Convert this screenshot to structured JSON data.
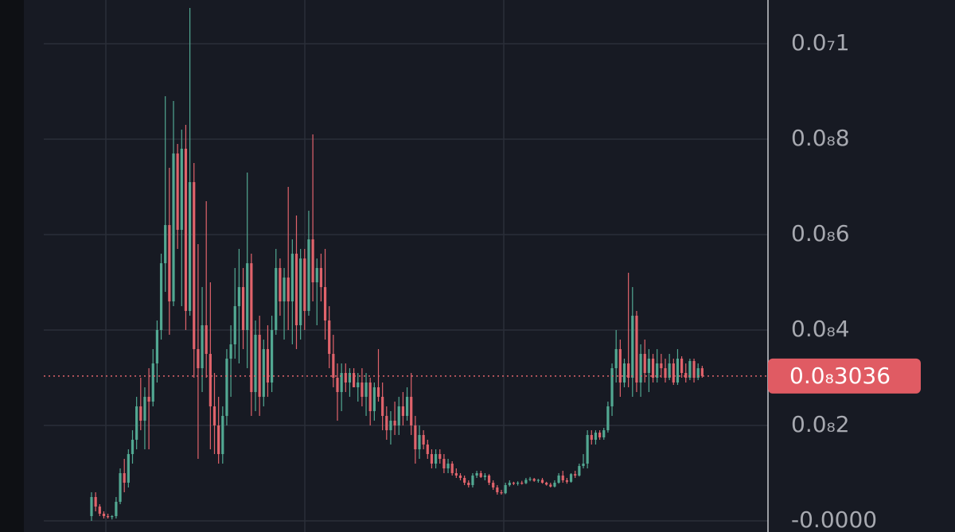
{
  "chart_data": {
    "type": "candlestick",
    "up_color": "#52a892",
    "down_color": "#e0636b",
    "grid": true,
    "ylim": [
      -2.33e-10,
      1.0917e-08
    ],
    "yticks": [
      {
        "value": 0,
        "label": "-0.0000"
      },
      {
        "value": 2e-09,
        "label": "0.0₈2"
      },
      {
        "value": 4e-09,
        "label": "0.0₈4"
      },
      {
        "value": 6e-09,
        "label": "0.0₈6"
      },
      {
        "value": 8e-09,
        "label": "0.0₈8"
      },
      {
        "value": 1e-08,
        "label": "0.0₇1"
      }
    ],
    "last_price": {
      "value": 3.036e-09,
      "label": "0.0₈3036"
    },
    "candles": [
      [
        1e-10,
        6e-10,
        0.0,
        5e-10
      ],
      [
        5e-10,
        6e-10,
        2e-10,
        3e-10
      ],
      [
        3e-10,
        3.5e-10,
        1e-10,
        1.5e-10
      ],
      [
        1.5e-10,
        2e-10,
        5e-11,
        1e-10
      ],
      [
        1e-10,
        1.5e-10,
        5e-11,
        8e-11
      ],
      [
        8e-11,
        1.2e-10,
        3e-11,
        1e-10
      ],
      [
        1e-10,
        5e-10,
        5e-11,
        4e-10
      ],
      [
        4e-10,
        1.1e-09,
        3.5e-10,
        1e-09
      ],
      [
        1e-09,
        1.3e-09,
        6e-10,
        8e-10
      ],
      [
        8e-10,
        1.5e-09,
        7e-10,
        1.4e-09
      ],
      [
        1.4e-09,
        1.9e-09,
        1.2e-09,
        1.7e-09
      ],
      [
        1.7e-09,
        2.6e-09,
        1.5e-09,
        2.4e-09
      ],
      [
        2.4e-09,
        3e-09,
        1.9e-09,
        2.1e-09
      ],
      [
        2.1e-09,
        2.8e-09,
        1.5e-09,
        2.6e-09
      ],
      [
        2.6e-09,
        3.2e-09,
        1.5e-09,
        2.5e-09
      ],
      [
        2.5e-09,
        3.6e-09,
        2.4e-09,
        3.3e-09
      ],
      [
        3.3e-09,
        4.2e-09,
        2.9e-09,
        4e-09
      ],
      [
        4e-09,
        5.6e-09,
        3.8e-09,
        5.4e-09
      ],
      [
        5.4e-09,
        8.9e-09,
        4.8e-09,
        6.2e-09
      ],
      [
        6.2e-09,
        7.4e-09,
        3.9e-09,
        4.6e-09
      ],
      [
        4.6e-09,
        8.8e-09,
        4.5e-09,
        7.7e-09
      ],
      [
        7.7e-09,
        7.9e-09,
        5.7e-09,
        6.1e-09
      ],
      [
        6.1e-09,
        8.2e-09,
        4.5e-09,
        7.8e-09
      ],
      [
        7.8e-09,
        8.3e-09,
        4e-09,
        4.4e-09
      ],
      [
        4.4e-09,
        1.075e-08,
        4.3e-09,
        7.1e-09
      ],
      [
        7.1e-09,
        7.5e-09,
        3e-09,
        3.6e-09
      ],
      [
        3.6e-09,
        5.8e-09,
        1.3e-09,
        3.2e-09
      ],
      [
        3.2e-09,
        4.9e-09,
        2.7e-09,
        4.1e-09
      ],
      [
        4.1e-09,
        6.7e-09,
        3e-09,
        3.5e-09
      ],
      [
        3.5e-09,
        5e-09,
        1.5e-09,
        2.4e-09
      ],
      [
        2.4e-09,
        3.1e-09,
        1.4e-09,
        2e-09
      ],
      [
        2e-09,
        2.6e-09,
        1.2e-09,
        1.4e-09
      ],
      [
        1.4e-09,
        2.4e-09,
        1.2e-09,
        2.2e-09
      ],
      [
        2.2e-09,
        3.6e-09,
        2e-09,
        3.4e-09
      ],
      [
        3.4e-09,
        4.1e-09,
        2.6e-09,
        3.7e-09
      ],
      [
        3.7e-09,
        5.3e-09,
        3.4e-09,
        4.5e-09
      ],
      [
        4.5e-09,
        5.7e-09,
        3.3e-09,
        4.9e-09
      ],
      [
        4.9e-09,
        5.3e-09,
        3.6e-09,
        4e-09
      ],
      [
        4e-09,
        7.3e-09,
        3.2e-09,
        5.4e-09
      ],
      [
        5.4e-09,
        5.6e-09,
        2.2e-09,
        2.7e-09
      ],
      [
        2.7e-09,
        4.2e-09,
        2.3e-09,
        3.9e-09
      ],
      [
        3.9e-09,
        4.3e-09,
        2.2e-09,
        2.6e-09
      ],
      [
        2.6e-09,
        3.8e-09,
        2.4e-09,
        3.6e-09
      ],
      [
        3.6e-09,
        4.1e-09,
        2.6e-09,
        2.9e-09
      ],
      [
        2.9e-09,
        4.3e-09,
        2.7e-09,
        4e-09
      ],
      [
        4e-09,
        5.7e-09,
        3.9e-09,
        5.3e-09
      ],
      [
        5.3e-09,
        5.5e-09,
        4.3e-09,
        4.6e-09
      ],
      [
        4.6e-09,
        5.3e-09,
        3.8e-09,
        5.1e-09
      ],
      [
        5.1e-09,
        7e-09,
        4e-09,
        4.6e-09
      ],
      [
        4.6e-09,
        5.9e-09,
        3.7e-09,
        5.6e-09
      ],
      [
        5.6e-09,
        6.4e-09,
        3.6e-09,
        4.1e-09
      ],
      [
        4.1e-09,
        5.7e-09,
        3.8e-09,
        5.5e-09
      ],
      [
        5.5e-09,
        5.7e-09,
        4e-09,
        4.4e-09
      ],
      [
        4.4e-09,
        6.5e-09,
        4.3e-09,
        5.9e-09
      ],
      [
        5.9e-09,
        8.1e-09,
        4.6e-09,
        5e-09
      ],
      [
        5e-09,
        5.5e-09,
        4.1e-09,
        5.3e-09
      ],
      [
        5.3e-09,
        5.6e-09,
        4.6e-09,
        4.9e-09
      ],
      [
        4.9e-09,
        5.7e-09,
        3.8e-09,
        4.2e-09
      ],
      [
        4.2e-09,
        4.5e-09,
        3.2e-09,
        3.5e-09
      ],
      [
        3.5e-09,
        3.9e-09,
        2.8e-09,
        3e-09
      ],
      [
        3e-09,
        3.3e-09,
        2.1e-09,
        2.7e-09
      ],
      [
        2.7e-09,
        3.3e-09,
        2.3e-09,
        3.1e-09
      ],
      [
        3.1e-09,
        3.3e-09,
        2.7e-09,
        2.9e-09
      ],
      [
        2.9e-09,
        3.2e-09,
        2.6e-09,
        3.1e-09
      ],
      [
        3.1e-09,
        3.2e-09,
        2.8e-09,
        2.8e-09
      ],
      [
        2.8e-09,
        3.1e-09,
        2.5e-09,
        2.9e-09
      ],
      [
        2.9e-09,
        3.2e-09,
        2.4e-09,
        2.6e-09
      ],
      [
        2.6e-09,
        3.1e-09,
        2.2e-09,
        2.9e-09
      ],
      [
        2.9e-09,
        3e-09,
        2e-09,
        2.3e-09
      ],
      [
        2.3e-09,
        2.9e-09,
        2.1e-09,
        2.8e-09
      ],
      [
        2.8e-09,
        3.6e-09,
        2.5e-09,
        2.6e-09
      ],
      [
        2.6e-09,
        2.9e-09,
        1.9e-09,
        2.2e-09
      ],
      [
        2.2e-09,
        2.4e-09,
        1.7e-09,
        1.9e-09
      ],
      [
        1.9e-09,
        2.3e-09,
        1.6e-09,
        2.1e-09
      ],
      [
        2.1e-09,
        2.5e-09,
        1.8e-09,
        2e-09
      ],
      [
        2e-09,
        2.6e-09,
        1.8e-09,
        2.4e-09
      ],
      [
        2.4e-09,
        2.7e-09,
        2e-09,
        2.2e-09
      ],
      [
        2.2e-09,
        2.8e-09,
        2.1e-09,
        2.6e-09
      ],
      [
        2.6e-09,
        3.1e-09,
        1.8e-09,
        2e-09
      ],
      [
        2e-09,
        2.2e-09,
        1.2e-09,
        1.5e-09
      ],
      [
        1.5e-09,
        2e-09,
        1.3e-09,
        1.8e-09
      ],
      [
        1.8e-09,
        1.9e-09,
        1.5e-09,
        1.6e-09
      ],
      [
        1.6e-09,
        1.7e-09,
        1.3e-09,
        1.4e-09
      ],
      [
        1.4e-09,
        1.5e-09,
        1.1e-09,
        1.2e-09
      ],
      [
        1.2e-09,
        1.5e-09,
        1.1e-09,
        1.4e-09
      ],
      [
        1.4e-09,
        1.5e-09,
        1.2e-09,
        1.3e-09
      ],
      [
        1.3e-09,
        1.4e-09,
        1e-09,
        1.1e-09
      ],
      [
        1.1e-09,
        1.3e-09,
        1e-09,
        1.2e-09
      ],
      [
        1.2e-09,
        1.25e-09,
        9.5e-10,
        1e-09
      ],
      [
        1e-09,
        1.1e-09,
        9e-10,
        9.5e-10
      ],
      [
        9.5e-10,
        1e-09,
        8.5e-10,
        9e-10
      ],
      [
        9e-10,
        9.5e-10,
        7.5e-10,
        8e-10
      ],
      [
        8e-10,
        8.5e-10,
        7e-10,
        7.5e-10
      ],
      [
        7.5e-10,
        1e-09,
        7e-10,
        9.5e-10
      ],
      [
        9.5e-10,
        1.05e-09,
        9e-10,
        1e-09
      ],
      [
        1e-09,
        1.05e-09,
        9e-10,
        9.2e-10
      ],
      [
        9.2e-10,
        1e-09,
        8.5e-10,
        9.5e-10
      ],
      [
        9.5e-10,
        9.8e-10,
        7.5e-10,
        8e-10
      ],
      [
        8e-10,
        8.5e-10,
        6.5e-10,
        7e-10
      ],
      [
        7e-10,
        7.5e-10,
        5.5e-10,
        6e-10
      ],
      [
        6e-10,
        6.5e-10,
        5.5e-10,
        5.8e-10
      ],
      [
        5.8e-10,
        8e-10,
        5.6e-10,
        7.5e-10
      ],
      [
        7.5e-10,
        8.5e-10,
        7.2e-10,
        8e-10
      ],
      [
        8e-10,
        8.2e-10,
        7.5e-10,
        7.8e-10
      ],
      [
        7.8e-10,
        8.3e-10,
        7.4e-10,
        8e-10
      ],
      [
        8e-10,
        8.4e-10,
        7.6e-10,
        7.9e-10
      ],
      [
        7.9e-10,
        9e-10,
        7.7e-10,
        8.6e-10
      ],
      [
        8.6e-10,
        9.2e-10,
        8.3e-10,
        8.8e-10
      ],
      [
        8.8e-10,
        9e-10,
        8.2e-10,
        8.4e-10
      ],
      [
        8.4e-10,
        8.8e-10,
        8e-10,
        8.6e-10
      ],
      [
        8.6e-10,
        9e-10,
        7.8e-10,
        8e-10
      ],
      [
        8e-10,
        8.2e-10,
        7.4e-10,
        7.6e-10
      ],
      [
        7.6e-10,
        8e-10,
        7e-10,
        7.2e-10
      ],
      [
        7.2e-10,
        8.5e-10,
        7e-10,
        8e-10
      ],
      [
        8e-10,
        1e-09,
        7.8e-10,
        9.5e-10
      ],
      [
        9.5e-10,
        1.05e-09,
        8e-10,
        8.5e-10
      ],
      [
        8.5e-10,
        9e-10,
        7.8e-10,
        8.2e-10
      ],
      [
        8.2e-10,
        1e-09,
        8e-10,
        9.8e-10
      ],
      [
        9.8e-10,
        1.05e-09,
        9e-10,
        9.5e-10
      ],
      [
        9.5e-10,
        1.2e-09,
        9.3e-10,
        1.15e-09
      ],
      [
        1.15e-09,
        1.4e-09,
        1.1e-09,
        1.2e-09
      ],
      [
        1.2e-09,
        1.9e-09,
        1.1e-09,
        1.8e-09
      ],
      [
        1.8e-09,
        1.9e-09,
        1.6e-09,
        1.7e-09
      ],
      [
        1.7e-09,
        1.9e-09,
        1.6e-09,
        1.85e-09
      ],
      [
        1.85e-09,
        1.9e-09,
        1.7e-09,
        1.75e-09
      ],
      [
        1.75e-09,
        1.95e-09,
        1.7e-09,
        1.9e-09
      ],
      [
        1.9e-09,
        2.5e-09,
        1.85e-09,
        2.4e-09
      ],
      [
        2.4e-09,
        3.3e-09,
        2.2e-09,
        3.2e-09
      ],
      [
        3.2e-09,
        4e-09,
        2.9e-09,
        3.6e-09
      ],
      [
        3.6e-09,
        3.8e-09,
        2.6e-09,
        2.9e-09
      ],
      [
        2.9e-09,
        3.4e-09,
        2.8e-09,
        3.3e-09
      ],
      [
        3.3e-09,
        5.2e-09,
        2.8e-09,
        3e-09
      ],
      [
        3e-09,
        4.9e-09,
        2.6e-09,
        4.3e-09
      ],
      [
        4.3e-09,
        4.4e-09,
        2.7e-09,
        2.9e-09
      ],
      [
        2.9e-09,
        3.7e-09,
        2.6e-09,
        3.5e-09
      ],
      [
        3.5e-09,
        3.8e-09,
        2.9e-09,
        3.1e-09
      ],
      [
        3.1e-09,
        3.6e-09,
        2.7e-09,
        3.4e-09
      ],
      [
        3.4e-09,
        3.5e-09,
        2.9e-09,
        3e-09
      ],
      [
        3e-09,
        3.6e-09,
        2.9e-09,
        3.3e-09
      ],
      [
        3.3e-09,
        3.5e-09,
        3e-09,
        3.2e-09
      ],
      [
        3.2e-09,
        3.4e-09,
        2.9e-09,
        3e-09
      ],
      [
        3e-09,
        3.5e-09,
        2.95e-09,
        3.3e-09
      ],
      [
        3.3e-09,
        3.4e-09,
        2.85e-09,
        2.9e-09
      ],
      [
        2.9e-09,
        3.6e-09,
        2.85e-09,
        3.4e-09
      ],
      [
        3.4e-09,
        3.45e-09,
        3e-09,
        3.1e-09
      ],
      [
        3.1e-09,
        3.3e-09,
        2.9e-09,
        3e-09
      ],
      [
        3e-09,
        3.4e-09,
        2.95e-09,
        3.35e-09
      ],
      [
        3.35e-09,
        3.4e-09,
        2.9e-09,
        3e-09
      ],
      [
        3e-09,
        3.3e-09,
        2.95e-09,
        3.2e-09
      ],
      [
        3.2e-09,
        3.25e-09,
        3e-09,
        3.036e-09
      ]
    ]
  }
}
